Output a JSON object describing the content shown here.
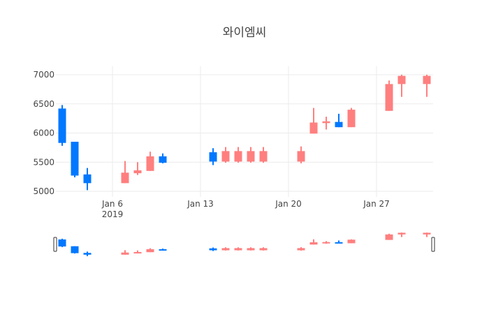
{
  "chart_data": {
    "type": "candlestick",
    "title": "와이엠씨",
    "xlabel": "",
    "ylabel": "",
    "ylim": [
      4950,
      7060
    ],
    "yticks": [
      5000,
      5500,
      6000,
      6500,
      7000
    ],
    "xticks": [
      {
        "label": "Jan 6",
        "sublabel": "2019",
        "day": 6
      },
      {
        "label": "Jan 13",
        "sublabel": "",
        "day": 13
      },
      {
        "label": "Jan 20",
        "sublabel": "",
        "day": 20
      },
      {
        "label": "Jan 27",
        "sublabel": "",
        "day": 27
      }
    ],
    "grid": true,
    "range_slider": true,
    "increasing_color": "#ff7f7f",
    "decreasing_color": "#0078ff",
    "x": [
      "2019-01-02",
      "2019-01-03",
      "2019-01-04",
      "2019-01-07",
      "2019-01-08",
      "2019-01-09",
      "2019-01-10",
      "2019-01-14",
      "2019-01-15",
      "2019-01-16",
      "2019-01-17",
      "2019-01-18",
      "2019-01-21",
      "2019-01-22",
      "2019-01-23",
      "2019-01-24",
      "2019-01-25",
      "2019-01-28",
      "2019-01-29",
      "2019-01-31"
    ],
    "days": [
      2,
      3,
      4,
      7,
      8,
      9,
      10,
      14,
      15,
      16,
      17,
      18,
      21,
      22,
      23,
      24,
      25,
      28,
      29,
      31
    ],
    "open": [
      6420,
      5850,
      5290,
      5140,
      5310,
      5350,
      5600,
      5670,
      5510,
      5510,
      5510,
      5510,
      5510,
      5990,
      6170,
      6190,
      6100,
      6380,
      6840,
      6840
    ],
    "high": [
      6480,
      5850,
      5400,
      5520,
      5500,
      5680,
      5650,
      5740,
      5760,
      5760,
      5760,
      5760,
      5770,
      6430,
      6280,
      6330,
      6430,
      6900,
      7000,
      7000
    ],
    "low": [
      5780,
      5240,
      5020,
      5140,
      5280,
      5350,
      5480,
      5450,
      5490,
      5490,
      5490,
      5490,
      5480,
      5990,
      6060,
      6100,
      6100,
      6380,
      6620,
      6620
    ],
    "close": [
      5830,
      5270,
      5140,
      5320,
      5360,
      5600,
      5490,
      5510,
      5690,
      5690,
      5690,
      5690,
      5690,
      6180,
      6200,
      6100,
      6400,
      6840,
      6980,
      6980
    ]
  }
}
